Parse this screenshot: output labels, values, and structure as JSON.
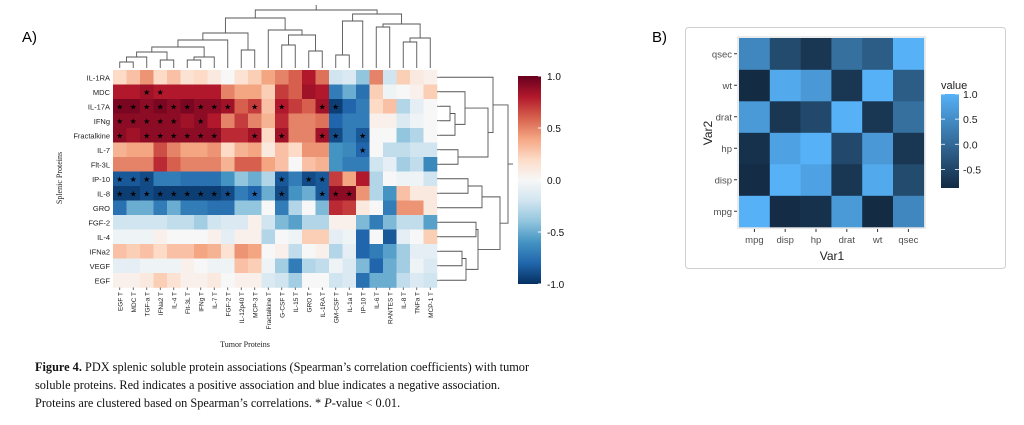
{
  "panel_a_label": "A)",
  "panel_b_label": "B)",
  "chart_data": [
    {
      "type": "heatmap",
      "panel": "A)",
      "xlabel": "Tumor Proteins",
      "ylabel": "Splenic Proteins",
      "colorscale": [
        "#053061",
        "#2166ac",
        "#4393c3",
        "#92c5de",
        "#d1e5f0",
        "#f7f7f7",
        "#fddbc7",
        "#f4a582",
        "#d6604d",
        "#b2182b",
        "#67001f"
      ],
      "zlim": [
        -1.0,
        1.0
      ],
      "colorbar_ticks": [
        "1.0",
        "0.5",
        "0.0",
        "-0.5",
        "-1.0"
      ],
      "dendrograms": "rows and columns",
      "columns": [
        "EGF T",
        "MDC T",
        "TGF-a T",
        "IFNa2 T",
        "IL-4 T",
        "Flt-3L T",
        "IFNg T",
        "IL-7 T",
        "FGF-2 T",
        "IL-12p40 T",
        "MCP-3 T",
        "Fractalkine T",
        "G-CSF T",
        "IL-15 T",
        "GRO T",
        "IL-1RA T",
        "GM-CSF T",
        "IL-1a T",
        "IP-10 T",
        "IL-6 T",
        "RANTES T",
        "IL-8 T",
        "TNFa T",
        "MCP-1 T"
      ],
      "rows": [
        "IL-1RA",
        "MDC",
        "IL-17A",
        "IFNg",
        "Fractalkine",
        "IL-7",
        "Flt-3L",
        "IP-10",
        "IL-8",
        "GRO",
        "FGF-2",
        "IL-4",
        "IFNa2",
        "VEGF",
        "EGF"
      ],
      "values": [
        [
          0.2,
          0.3,
          0.45,
          0.2,
          0.3,
          0.15,
          0.2,
          0.1,
          0.0,
          0.15,
          0.25,
          0.4,
          0.5,
          0.6,
          0.8,
          0.55,
          -0.2,
          -0.15,
          -0.4,
          0.5,
          -0.2,
          0.25,
          0.1,
          0.05
        ],
        [
          0.8,
          0.8,
          0.85,
          0.8,
          0.8,
          0.8,
          0.8,
          0.8,
          0.5,
          0.4,
          0.4,
          0.25,
          0.7,
          0.6,
          0.85,
          0.8,
          -0.7,
          -0.5,
          -0.75,
          0.25,
          -0.05,
          0.0,
          0.05,
          0.25
        ],
        [
          0.95,
          0.95,
          0.9,
          0.95,
          0.9,
          0.95,
          0.9,
          0.9,
          0.85,
          0.6,
          0.7,
          0.3,
          0.8,
          0.7,
          0.6,
          0.85,
          -0.95,
          -0.8,
          -0.7,
          0.2,
          0.3,
          -0.3,
          -0.1,
          0.0
        ],
        [
          0.9,
          0.9,
          0.9,
          0.9,
          0.9,
          0.85,
          0.9,
          0.8,
          0.5,
          0.7,
          0.5,
          0.35,
          0.75,
          0.5,
          0.5,
          0.55,
          -0.8,
          -0.7,
          -0.7,
          0.05,
          0.05,
          -0.15,
          -0.05,
          0.0
        ],
        [
          0.9,
          0.85,
          0.9,
          0.9,
          0.9,
          0.9,
          0.9,
          0.9,
          0.75,
          0.75,
          0.85,
          0.2,
          0.85,
          0.5,
          0.5,
          0.85,
          -0.9,
          -0.7,
          -0.85,
          0.0,
          0.0,
          -0.4,
          -0.3,
          0.0
        ],
        [
          0.35,
          0.4,
          0.4,
          0.65,
          0.5,
          0.4,
          0.4,
          0.45,
          0.2,
          0.35,
          0.4,
          0.1,
          0.3,
          0.2,
          0.45,
          0.45,
          -0.6,
          -0.65,
          -0.8,
          0.0,
          -0.25,
          -0.25,
          -0.2,
          -0.2
        ],
        [
          0.5,
          0.5,
          0.5,
          0.75,
          0.6,
          0.5,
          0.5,
          0.5,
          0.35,
          0.6,
          0.6,
          0.4,
          0.3,
          0.0,
          0.3,
          0.35,
          -0.6,
          -0.7,
          -0.7,
          -0.2,
          -0.1,
          -0.35,
          -0.25,
          -0.65
        ],
        [
          -0.85,
          -0.85,
          -0.9,
          -0.7,
          -0.7,
          -0.75,
          -0.75,
          -0.75,
          -0.6,
          -0.4,
          -0.5,
          -0.3,
          -0.85,
          -0.7,
          -0.9,
          -0.85,
          0.7,
          0.4,
          0.8,
          -0.3,
          0.0,
          -0.05,
          -0.05,
          -0.2
        ],
        [
          -0.95,
          -0.95,
          -0.9,
          -0.95,
          -0.95,
          -0.95,
          -0.95,
          -0.95,
          -0.9,
          -0.7,
          -0.8,
          -0.5,
          -0.9,
          -0.6,
          -0.5,
          -0.85,
          0.9,
          0.9,
          0.45,
          -0.3,
          -0.6,
          0.3,
          0.1,
          0.1
        ],
        [
          -0.75,
          -0.5,
          -0.5,
          -0.7,
          -0.5,
          -0.7,
          -0.7,
          -0.75,
          -0.75,
          -0.4,
          -0.4,
          0.0,
          -0.7,
          -0.3,
          0.0,
          -0.45,
          0.75,
          0.7,
          0.1,
          0.0,
          -0.7,
          0.45,
          0.45,
          0.1
        ],
        [
          -0.2,
          -0.2,
          -0.2,
          -0.2,
          -0.25,
          -0.25,
          -0.35,
          -0.2,
          -0.15,
          -0.15,
          0.05,
          -0.2,
          -0.45,
          -0.55,
          -0.3,
          -0.3,
          0.05,
          0.05,
          -0.45,
          -0.7,
          -0.45,
          -0.25,
          -0.25,
          -0.55
        ],
        [
          -0.05,
          -0.05,
          -0.05,
          0.05,
          0.0,
          0.0,
          0.0,
          0.05,
          -0.1,
          0.05,
          0.05,
          -0.3,
          0.0,
          -0.05,
          0.25,
          0.25,
          -0.1,
          -0.05,
          -0.8,
          0.0,
          -0.85,
          -0.1,
          0.0,
          0.25
        ],
        [
          0.3,
          0.25,
          0.3,
          0.2,
          0.3,
          0.3,
          0.4,
          0.35,
          0.15,
          0.45,
          0.4,
          0.0,
          0.05,
          -0.25,
          0.0,
          0.05,
          -0.3,
          -0.1,
          -0.8,
          -0.7,
          -0.55,
          -0.35,
          -0.1,
          -0.1
        ],
        [
          -0.1,
          -0.1,
          -0.05,
          -0.05,
          -0.05,
          0.05,
          0.0,
          -0.05,
          -0.05,
          0.3,
          0.25,
          -0.05,
          -0.35,
          -0.7,
          -0.3,
          -0.25,
          -0.05,
          -0.15,
          -0.45,
          -0.8,
          -0.5,
          -0.35,
          -0.05,
          -0.15
        ],
        [
          0.05,
          0.05,
          0.1,
          0.25,
          0.15,
          0.05,
          0.05,
          0.1,
          0.0,
          0.05,
          0.05,
          -0.15,
          -0.2,
          -0.35,
          0.0,
          0.0,
          -0.2,
          -0.15,
          -0.75,
          -0.5,
          -0.5,
          -0.25,
          -0.15,
          -0.2
        ]
      ],
      "significant": [
        [
          0,
          0,
          0,
          0,
          0,
          0,
          0,
          0,
          0,
          0,
          0,
          0,
          0,
          0,
          0,
          0,
          0,
          0,
          0,
          0,
          0,
          0,
          0,
          0
        ],
        [
          0,
          0,
          1,
          1,
          0,
          0,
          0,
          0,
          0,
          0,
          0,
          0,
          0,
          0,
          0,
          0,
          0,
          0,
          0,
          0,
          0,
          0,
          0,
          0
        ],
        [
          1,
          1,
          1,
          1,
          1,
          1,
          1,
          1,
          1,
          0,
          1,
          0,
          1,
          0,
          0,
          1,
          1,
          0,
          0,
          0,
          0,
          0,
          0,
          0
        ],
        [
          1,
          1,
          1,
          1,
          1,
          0,
          1,
          0,
          0,
          0,
          0,
          0,
          0,
          0,
          0,
          0,
          0,
          0,
          0,
          0,
          0,
          0,
          0,
          0
        ],
        [
          1,
          0,
          1,
          1,
          1,
          1,
          1,
          1,
          0,
          0,
          1,
          0,
          1,
          0,
          0,
          1,
          1,
          0,
          1,
          0,
          0,
          0,
          0,
          0
        ],
        [
          0,
          0,
          0,
          0,
          0,
          0,
          0,
          0,
          0,
          0,
          0,
          0,
          0,
          0,
          0,
          0,
          0,
          0,
          1,
          0,
          0,
          0,
          0,
          0
        ],
        [
          0,
          0,
          0,
          0,
          0,
          0,
          0,
          0,
          0,
          0,
          0,
          0,
          0,
          0,
          0,
          0,
          0,
          0,
          0,
          0,
          0,
          0,
          0,
          0
        ],
        [
          1,
          1,
          1,
          0,
          0,
          0,
          0,
          0,
          0,
          0,
          0,
          0,
          1,
          0,
          1,
          1,
          0,
          0,
          0,
          0,
          0,
          0,
          0,
          0
        ],
        [
          1,
          1,
          1,
          1,
          1,
          1,
          1,
          1,
          1,
          0,
          1,
          0,
          1,
          0,
          0,
          1,
          1,
          1,
          0,
          0,
          0,
          0,
          0,
          0
        ],
        [
          0,
          0,
          0,
          0,
          0,
          0,
          0,
          0,
          0,
          0,
          0,
          0,
          0,
          0,
          0,
          0,
          0,
          0,
          0,
          0,
          0,
          0,
          0,
          0
        ],
        [
          0,
          0,
          0,
          0,
          0,
          0,
          0,
          0,
          0,
          0,
          0,
          0,
          0,
          0,
          0,
          0,
          0,
          0,
          0,
          0,
          0,
          0,
          0,
          0
        ],
        [
          0,
          0,
          0,
          0,
          0,
          0,
          0,
          0,
          0,
          0,
          0,
          0,
          0,
          0,
          0,
          0,
          0,
          0,
          0,
          0,
          0,
          0,
          0,
          0
        ],
        [
          0,
          0,
          0,
          0,
          0,
          0,
          0,
          0,
          0,
          0,
          0,
          0,
          0,
          0,
          0,
          0,
          0,
          0,
          0,
          0,
          0,
          0,
          0,
          0
        ],
        [
          0,
          0,
          0,
          0,
          0,
          0,
          0,
          0,
          0,
          0,
          0,
          0,
          0,
          0,
          0,
          0,
          0,
          0,
          0,
          0,
          0,
          0,
          0,
          0
        ],
        [
          0,
          0,
          0,
          0,
          0,
          0,
          0,
          0,
          0,
          0,
          0,
          0,
          0,
          0,
          0,
          0,
          0,
          0,
          0,
          0,
          0,
          0,
          0,
          0
        ]
      ],
      "significance_marker": "★"
    },
    {
      "type": "heatmap",
      "panel": "B)",
      "xlabel": "Var1",
      "ylabel": "Var2",
      "x": [
        "mpg",
        "disp",
        "hp",
        "drat",
        "wt",
        "qsec"
      ],
      "y": [
        "mpg",
        "disp",
        "hp",
        "drat",
        "wt",
        "qsec"
      ],
      "values": [
        [
          1.0,
          -0.85,
          -0.78,
          0.68,
          -0.87,
          0.42
        ],
        [
          -0.85,
          1.0,
          0.79,
          -0.71,
          0.89,
          -0.43
        ],
        [
          -0.78,
          0.79,
          1.0,
          -0.45,
          0.66,
          -0.71
        ],
        [
          0.68,
          -0.71,
          -0.45,
          1.0,
          -0.71,
          0.09
        ],
        [
          -0.87,
          0.89,
          0.66,
          -0.71,
          1.0,
          -0.17
        ],
        [
          0.42,
          -0.43,
          -0.71,
          0.09,
          -0.17,
          1.0
        ]
      ],
      "legend_title": "value",
      "legend_ticks": [
        "1.0",
        "0.5",
        "0.0",
        "-0.5"
      ],
      "zlim": [
        -0.87,
        1.0
      ],
      "colors": {
        "low": "#132b43",
        "high": "#56b1f7",
        "panel_bg": "#ebebeb"
      },
      "legend_position": "right"
    }
  ],
  "caption": {
    "label": "Figure 4.",
    "line1": " PDX splenic soluble protein associations (Spearman’s correlation coefficients) with tumor",
    "line2": "soluble proteins. Red indicates a positive association and blue indicates a negative association.",
    "line3": "Proteins are clustered based on Spearman’s correlations. * ",
    "line3_italic": "P",
    "line3_end": "-value < 0.01."
  }
}
